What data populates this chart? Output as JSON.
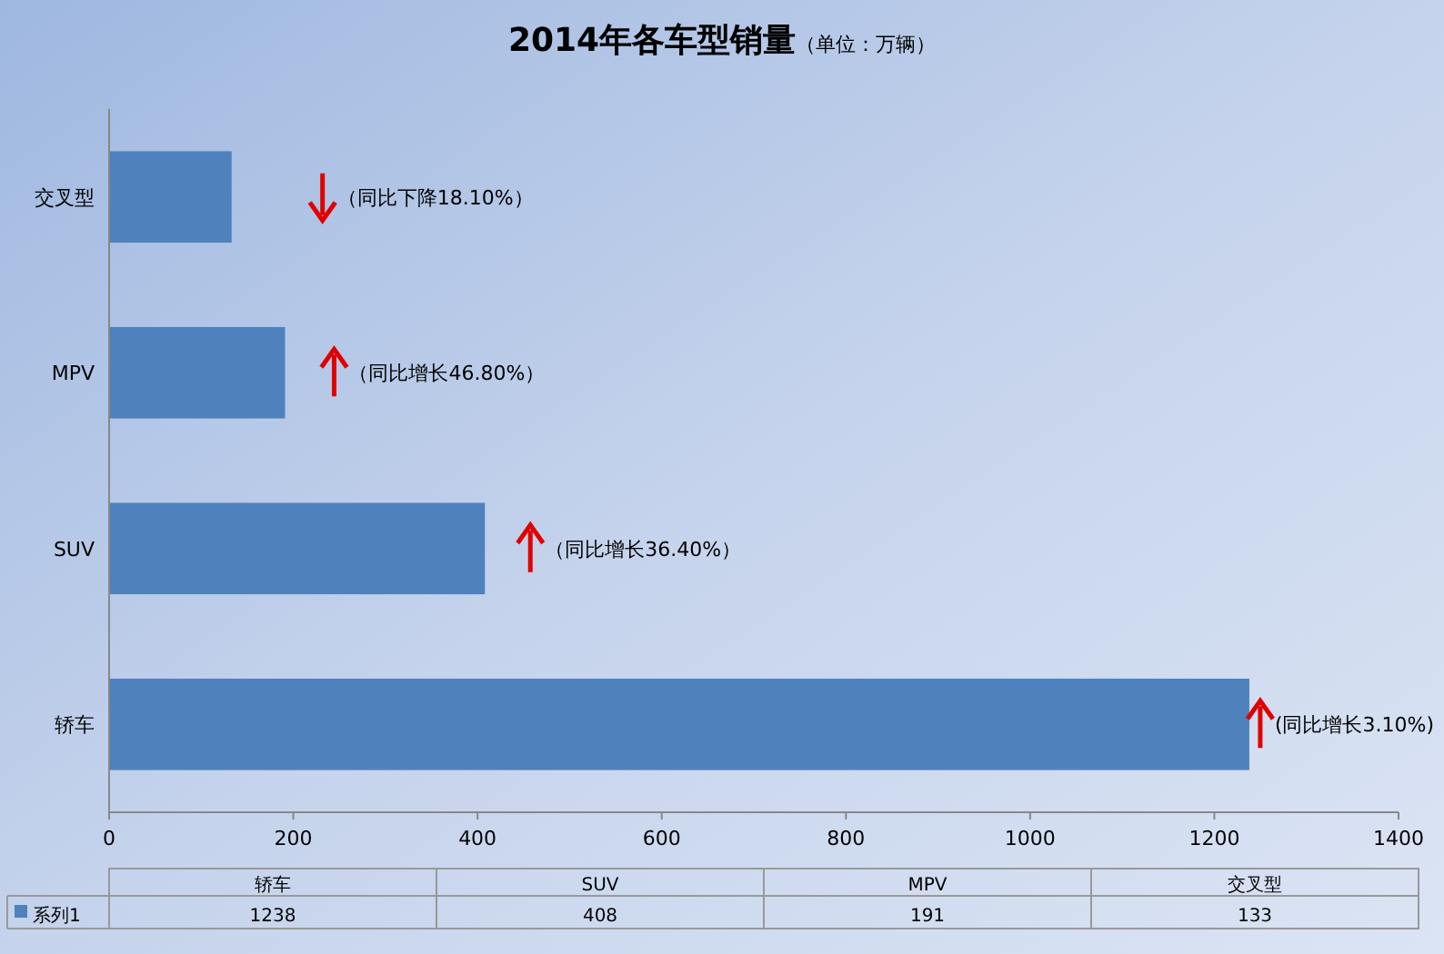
{
  "chart_data": {
    "type": "bar",
    "orientation": "horizontal",
    "title": "2014年各车型销量",
    "subtitle": "（单位：万辆）",
    "categories": [
      "交叉型",
      "MPV",
      "SUV",
      "轿车"
    ],
    "series": [
      {
        "name": "系列1",
        "color": "#4f81bd",
        "values": [
          133,
          191,
          408,
          1238
        ]
      }
    ],
    "xlim": [
      0,
      1400
    ],
    "xticks": [
      0,
      200,
      400,
      600,
      800,
      1000,
      1200,
      1400
    ],
    "value_labels": [
      "133",
      "191",
      "408",
      "1238"
    ],
    "legend": "bottom",
    "grid": false,
    "annotations": [
      "（同比下降18.10%）",
      "（同比增长46.80%）",
      "（同比增长36.40%）",
      "(同比增长3.10%)"
    ]
  }
}
